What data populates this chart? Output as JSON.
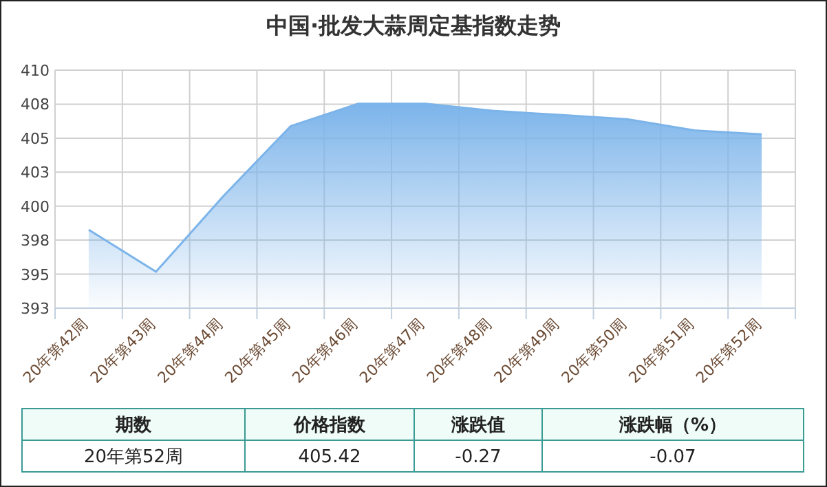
{
  "chart_data": {
    "type": "area",
    "title": "中国·批发大蒜周定基指数走势",
    "categories": [
      "20年第42周",
      "20年第43周",
      "20年第44周",
      "20年第45周",
      "20年第46周",
      "20年第47周",
      "20年第48周",
      "20年第49周",
      "20年第50周",
      "20年第51周",
      "20年第52周"
    ],
    "series": [
      {
        "color": "#7cb4ea",
        "values": [
          398.6,
          395.6,
          401.0,
          406.0,
          407.6,
          407.6,
          407.1,
          406.8,
          406.5,
          405.7,
          405.42
        ]
      }
    ],
    "ylim": [
      393,
      410
    ],
    "yticks": [
      393,
      {
        "value": 395.43,
        "label": "395"
      },
      {
        "value": 397.86,
        "label": "398"
      },
      {
        "value": 400.29,
        "label": "400"
      },
      {
        "value": 402.71,
        "label": "403"
      },
      {
        "value": 405.14,
        "label": "405"
      },
      {
        "value": 407.57,
        "label": "408"
      },
      410
    ],
    "grid": true,
    "annotations": [
      "期数",
      "价格指数",
      "涨跌值",
      "涨跌幅（%）",
      "20年第52周",
      "405.42",
      "-0.27",
      "-0.07"
    ]
  }
}
